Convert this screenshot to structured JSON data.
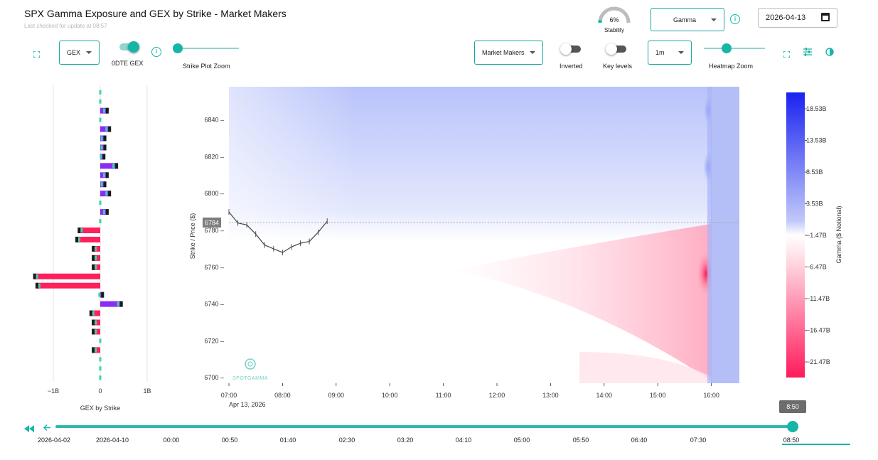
{
  "header": {
    "title": "SPX Gamma Exposure and GEX by Strike - Market Makers",
    "subtitle": "Last checked for update at 08:57",
    "stability": {
      "value": "6%",
      "label": "Stability",
      "fraction": 0.06
    },
    "metric_select": "Gamma",
    "date": "2026-04-13"
  },
  "toolbar": {
    "gex_select": "GEX",
    "dte_label": "0DTE GEX",
    "dte_on": true,
    "strike_zoom_label": "Strike Plot Zoom",
    "strike_zoom_fraction": 0.0,
    "party_select": "Market Makers",
    "inverted_label": "Inverted",
    "inverted_on": false,
    "key_levels_label": "Key levels",
    "key_levels_on": false,
    "interval_select": "1m",
    "heatmap_zoom_label": "Heatmap Zoom",
    "heatmap_zoom_fraction": 0.35
  },
  "gex_chart": {
    "xlabel": "GEX by Strike",
    "xticks": [
      "−1B",
      "0",
      "1B"
    ]
  },
  "heatmap": {
    "ylabel": "Strike / Price ($)",
    "yticks": [
      "6840",
      "6820",
      "6800",
      "6780",
      "6760",
      "6740",
      "6720",
      "6700"
    ],
    "xticks": [
      "07:00",
      "08:00",
      "09:00",
      "10:00",
      "11:00",
      "12:00",
      "13:00",
      "14:00",
      "15:00",
      "16:00"
    ],
    "x_sublabel": "Apr 13, 2026",
    "price_marker": "6784",
    "watermark": "SPOTGAMMA"
  },
  "colorbar": {
    "label": "Gamma ($ Notional)",
    "ticks": [
      "18.53B",
      "13.53B",
      "8.53B",
      "3.53B",
      "−1.47B",
      "−6.47B",
      "−11.47B",
      "−16.47B",
      "−21.47B"
    ],
    "top_color": "#1a22f0",
    "bottom_color": "#ff1a5c"
  },
  "timeline": {
    "current": "8:50",
    "labels": [
      "2026-04-02",
      "2026-04-10",
      "00:00",
      "00:50",
      "01:40",
      "02:30",
      "03:20",
      "04:10",
      "05:00",
      "05:50",
      "06:40",
      "07:30",
      "08:50"
    ],
    "position_fraction": 1.0
  },
  "chart_data": {
    "type": "heatmap",
    "title": "SPX Gamma Exposure and GEX by Strike - Market Makers",
    "ylabel": "Strike / Price ($)",
    "xlabel": "",
    "ylim": [
      6697,
      6858
    ],
    "xlim": [
      "07:00",
      "16:30"
    ],
    "colorbar_label": "Gamma ($ Notional)",
    "colorbar_range": [
      -23.5,
      21.0
    ],
    "price_series": {
      "times": [
        "07:00",
        "07:10",
        "07:20",
        "07:30",
        "07:40",
        "07:50",
        "08:00",
        "08:10",
        "08:20",
        "08:30",
        "08:40",
        "08:50"
      ],
      "values": [
        6790,
        6784,
        6783,
        6778,
        6772,
        6770,
        6768,
        6771,
        6773,
        6774,
        6779,
        6785
      ]
    },
    "gex_by_strike": {
      "xlabel": "GEX by Strike",
      "strikes": [
        6855,
        6850,
        6845,
        6840,
        6835,
        6830,
        6825,
        6820,
        6815,
        6810,
        6805,
        6800,
        6795,
        6790,
        6785,
        6780,
        6775,
        6770,
        6765,
        6760,
        6755,
        6750,
        6745,
        6740,
        6735,
        6730,
        6725,
        6720,
        6715,
        6710,
        6705,
        6700
      ],
      "values_billion": [
        0.0,
        0.0,
        0.15,
        0.0,
        0.2,
        0.1,
        0.1,
        0.08,
        0.35,
        0.15,
        0.1,
        0.2,
        0.0,
        0.15,
        0.0,
        -0.45,
        -0.5,
        -0.15,
        -0.15,
        -0.15,
        -1.4,
        -1.35,
        0.05,
        0.45,
        -0.2,
        -0.15,
        -0.15,
        0.0,
        -0.15,
        0.0,
        0.0,
        0.0
      ]
    }
  }
}
